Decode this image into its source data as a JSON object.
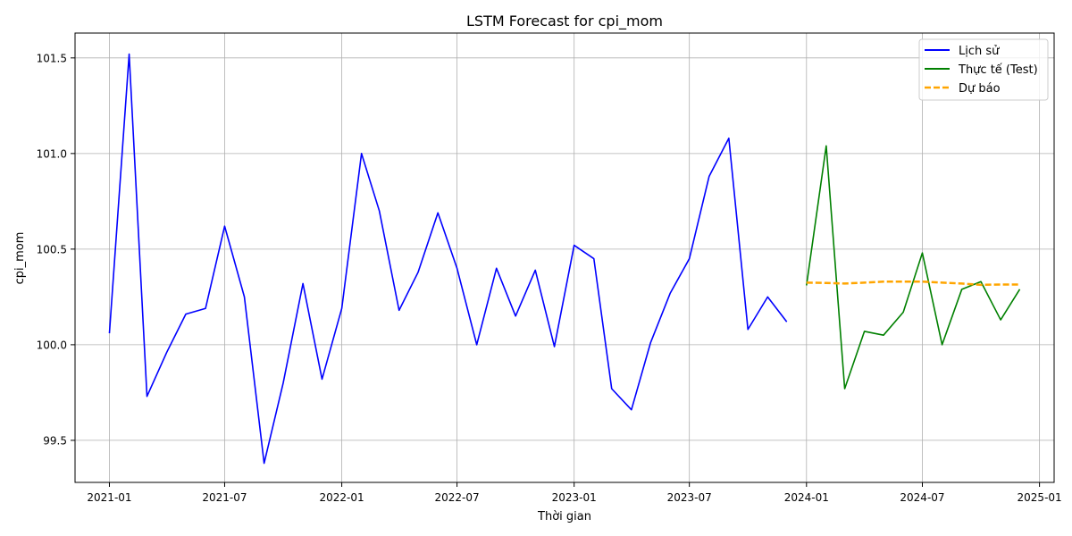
{
  "chart_data": {
    "type": "line",
    "title": "LSTM Forecast for cpi_mom",
    "xlabel": "Thời gian",
    "ylabel": "cpi_mom",
    "xlim": [
      "2020-11-08",
      "2025-01-24"
    ],
    "ylim": [
      99.28,
      101.63
    ],
    "x_ticks": [
      "2021-01-01",
      "2021-07-01",
      "2022-01-01",
      "2022-07-01",
      "2023-01-01",
      "2023-07-01",
      "2024-01-01",
      "2024-07-01",
      "2025-01-01"
    ],
    "x_tick_labels": [
      "2021-01",
      "2021-07",
      "2022-01",
      "2022-07",
      "2023-01",
      "2023-07",
      "2024-01",
      "2024-07",
      "2025-01"
    ],
    "y_ticks": [
      99.5,
      100.0,
      100.5,
      101.0,
      101.5
    ],
    "y_tick_labels": [
      "99.5",
      "100.0",
      "100.5",
      "101.0",
      "101.5"
    ],
    "grid": true,
    "legend_position": "top-right",
    "series": [
      {
        "name": "Lịch sử",
        "color": "#0000ff",
        "style": "solid",
        "x": [
          "2021-01-01",
          "2021-02-01",
          "2021-03-01",
          "2021-04-01",
          "2021-05-01",
          "2021-06-01",
          "2021-07-01",
          "2021-08-01",
          "2021-09-01",
          "2021-10-01",
          "2021-11-01",
          "2021-12-01",
          "2022-01-01",
          "2022-02-01",
          "2022-03-01",
          "2022-04-01",
          "2022-05-01",
          "2022-06-01",
          "2022-07-01",
          "2022-08-01",
          "2022-09-01",
          "2022-10-01",
          "2022-11-01",
          "2022-12-01",
          "2023-01-01",
          "2023-02-01",
          "2023-03-01",
          "2023-04-01",
          "2023-05-01",
          "2023-06-01",
          "2023-07-01",
          "2023-08-01",
          "2023-09-01",
          "2023-10-01",
          "2023-11-01",
          "2023-12-01"
        ],
        "values": [
          100.06,
          101.52,
          99.73,
          99.96,
          100.16,
          100.19,
          100.62,
          100.25,
          99.38,
          99.8,
          100.32,
          99.82,
          100.19,
          101.0,
          100.7,
          100.18,
          100.38,
          100.69,
          100.4,
          100.0,
          100.4,
          100.15,
          100.39,
          99.99,
          100.52,
          100.45,
          99.77,
          99.66,
          100.01,
          100.27,
          100.45,
          100.88,
          101.08,
          100.08,
          100.25,
          100.12
        ]
      },
      {
        "name": "Thực tế (Test)",
        "color": "#008000",
        "style": "solid",
        "x": [
          "2024-01-01",
          "2024-02-01",
          "2024-03-01",
          "2024-04-01",
          "2024-05-01",
          "2024-06-01",
          "2024-07-01",
          "2024-08-01",
          "2024-09-01",
          "2024-10-01",
          "2024-11-01",
          "2024-12-01"
        ],
        "values": [
          100.31,
          101.04,
          99.77,
          100.07,
          100.05,
          100.17,
          100.48,
          100.0,
          100.29,
          100.33,
          100.13,
          100.29
        ]
      },
      {
        "name": "Dự báo",
        "color": "#ffa500",
        "style": "dashed",
        "x": [
          "2024-01-01",
          "2024-02-01",
          "2024-03-01",
          "2024-04-01",
          "2024-05-01",
          "2024-06-01",
          "2024-07-01",
          "2024-08-01",
          "2024-09-01",
          "2024-10-01",
          "2024-11-01",
          "2024-12-01"
        ],
        "values": [
          100.325,
          100.323,
          100.32,
          100.325,
          100.33,
          100.33,
          100.33,
          100.325,
          100.32,
          100.313,
          100.315,
          100.315
        ]
      }
    ]
  }
}
